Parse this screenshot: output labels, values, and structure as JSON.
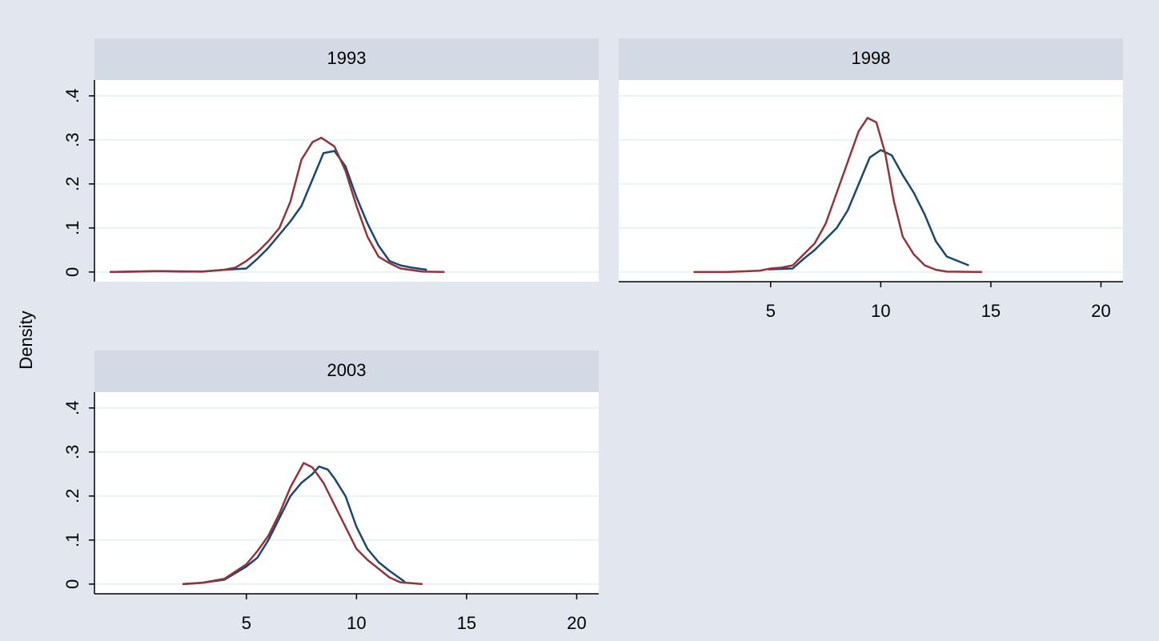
{
  "chart_data": {
    "type": "line",
    "y_label": "Density",
    "panels": [
      {
        "title": "1993",
        "xlim": [
          -1.9,
          21
        ],
        "ylim": [
          -0.022,
          0.436
        ],
        "yticks": [
          0,
          {
            "value": 0.1,
            "label": ".1"
          },
          {
            "value": 0.2,
            "label": ".2"
          },
          {
            "value": 0.3,
            "label": ".3"
          },
          {
            "value": 0.4,
            "label": ".4"
          }
        ],
        "grid": true,
        "series": [
          {
            "color": "#1a476f",
            "x": [
              -1.2,
              1,
              3,
              4,
              5,
              5.5,
              6,
              6.5,
              7,
              7.5,
              8,
              8.5,
              9,
              9.5,
              10,
              10.5,
              11,
              11.5,
              12,
              12.5,
              13.2
            ],
            "values": [
              0,
              0.002,
              0.001,
              0.005,
              0.008,
              0.03,
              0.055,
              0.085,
              0.115,
              0.15,
              0.21,
              0.27,
              0.275,
              0.24,
              0.17,
              0.11,
              0.06,
              0.025,
              0.015,
              0.01,
              0.005
            ]
          },
          {
            "color": "#90353b",
            "x": [
              -1.2,
              0,
              1,
              2,
              3,
              4,
              4.5,
              5,
              5.5,
              6,
              6.5,
              7,
              7.5,
              8,
              8.4,
              9,
              9.5,
              10,
              10.5,
              11,
              11.5,
              12,
              13,
              14
            ],
            "values": [
              0,
              0.001,
              0.002,
              0.001,
              0.001,
              0.005,
              0.01,
              0.025,
              0.045,
              0.07,
              0.1,
              0.16,
              0.255,
              0.295,
              0.305,
              0.285,
              0.23,
              0.15,
              0.08,
              0.035,
              0.02,
              0.008,
              0.001,
              0
            ]
          }
        ]
      },
      {
        "title": "1998",
        "xlim": [
          -1.9,
          21
        ],
        "ylim": [
          -0.022,
          0.436
        ],
        "xticks": [
          5,
          10,
          15,
          20
        ],
        "yticks": [
          0,
          {
            "value": 0.1,
            "label": ".1"
          },
          {
            "value": 0.2,
            "label": ".2"
          },
          {
            "value": 0.3,
            "label": ".3"
          },
          {
            "value": 0.4,
            "label": ".4"
          }
        ],
        "grid": true,
        "series": [
          {
            "color": "#1a476f",
            "x": [
              4.9,
              5.5,
              6,
              6.5,
              7,
              7.5,
              8,
              8.5,
              9,
              9.5,
              10,
              10.5,
              11,
              11.5,
              12,
              12.5,
              13,
              14
            ],
            "values": [
              0.006,
              0.007,
              0.008,
              0.03,
              0.05,
              0.075,
              0.1,
              0.14,
              0.2,
              0.26,
              0.277,
              0.265,
              0.22,
              0.18,
              0.13,
              0.07,
              0.035,
              0.015
            ]
          },
          {
            "color": "#90353b",
            "x": [
              1.5,
              3,
              4.5,
              5,
              5.5,
              6,
              6.5,
              7,
              7.5,
              8,
              8.5,
              9,
              9.4,
              9.8,
              10.2,
              10.6,
              11,
              11.5,
              12,
              12.5,
              13,
              14.6
            ],
            "values": [
              0,
              0,
              0.003,
              0.008,
              0.01,
              0.015,
              0.04,
              0.065,
              0.11,
              0.18,
              0.25,
              0.32,
              0.35,
              0.34,
              0.27,
              0.16,
              0.08,
              0.04,
              0.015,
              0.005,
              0.001,
              0
            ]
          }
        ]
      },
      {
        "title": "2003",
        "xlim": [
          -1.9,
          21
        ],
        "ylim": [
          -0.022,
          0.436
        ],
        "xticks": [
          5,
          10,
          15,
          20
        ],
        "yticks": [
          0,
          {
            "value": 0.1,
            "label": ".1"
          },
          {
            "value": 0.2,
            "label": ".2"
          },
          {
            "value": 0.3,
            "label": ".3"
          },
          {
            "value": 0.4,
            "label": ".4"
          }
        ],
        "grid": true,
        "series": [
          {
            "color": "#1a476f",
            "x": [
              2.1,
              3,
              4,
              5,
              5.5,
              6,
              6.5,
              7,
              7.5,
              8,
              8.3,
              8.7,
              9,
              9.5,
              10,
              10.5,
              11,
              11.5,
              12.2
            ],
            "values": [
              0,
              0.003,
              0.01,
              0.04,
              0.06,
              0.1,
              0.15,
              0.2,
              0.23,
              0.25,
              0.267,
              0.26,
              0.24,
              0.2,
              0.13,
              0.08,
              0.05,
              0.03,
              0.005
            ]
          },
          {
            "color": "#90353b",
            "x": [
              2.1,
              3,
              4,
              5,
              5.5,
              6,
              6.5,
              7,
              7.6,
              8,
              8.5,
              9,
              9.5,
              10,
              10.5,
              11,
              11.5,
              12,
              13
            ],
            "values": [
              0,
              0.003,
              0.012,
              0.045,
              0.075,
              0.11,
              0.16,
              0.22,
              0.275,
              0.265,
              0.23,
              0.18,
              0.13,
              0.08,
              0.055,
              0.035,
              0.015,
              0.004,
              0
            ]
          }
        ]
      }
    ]
  }
}
